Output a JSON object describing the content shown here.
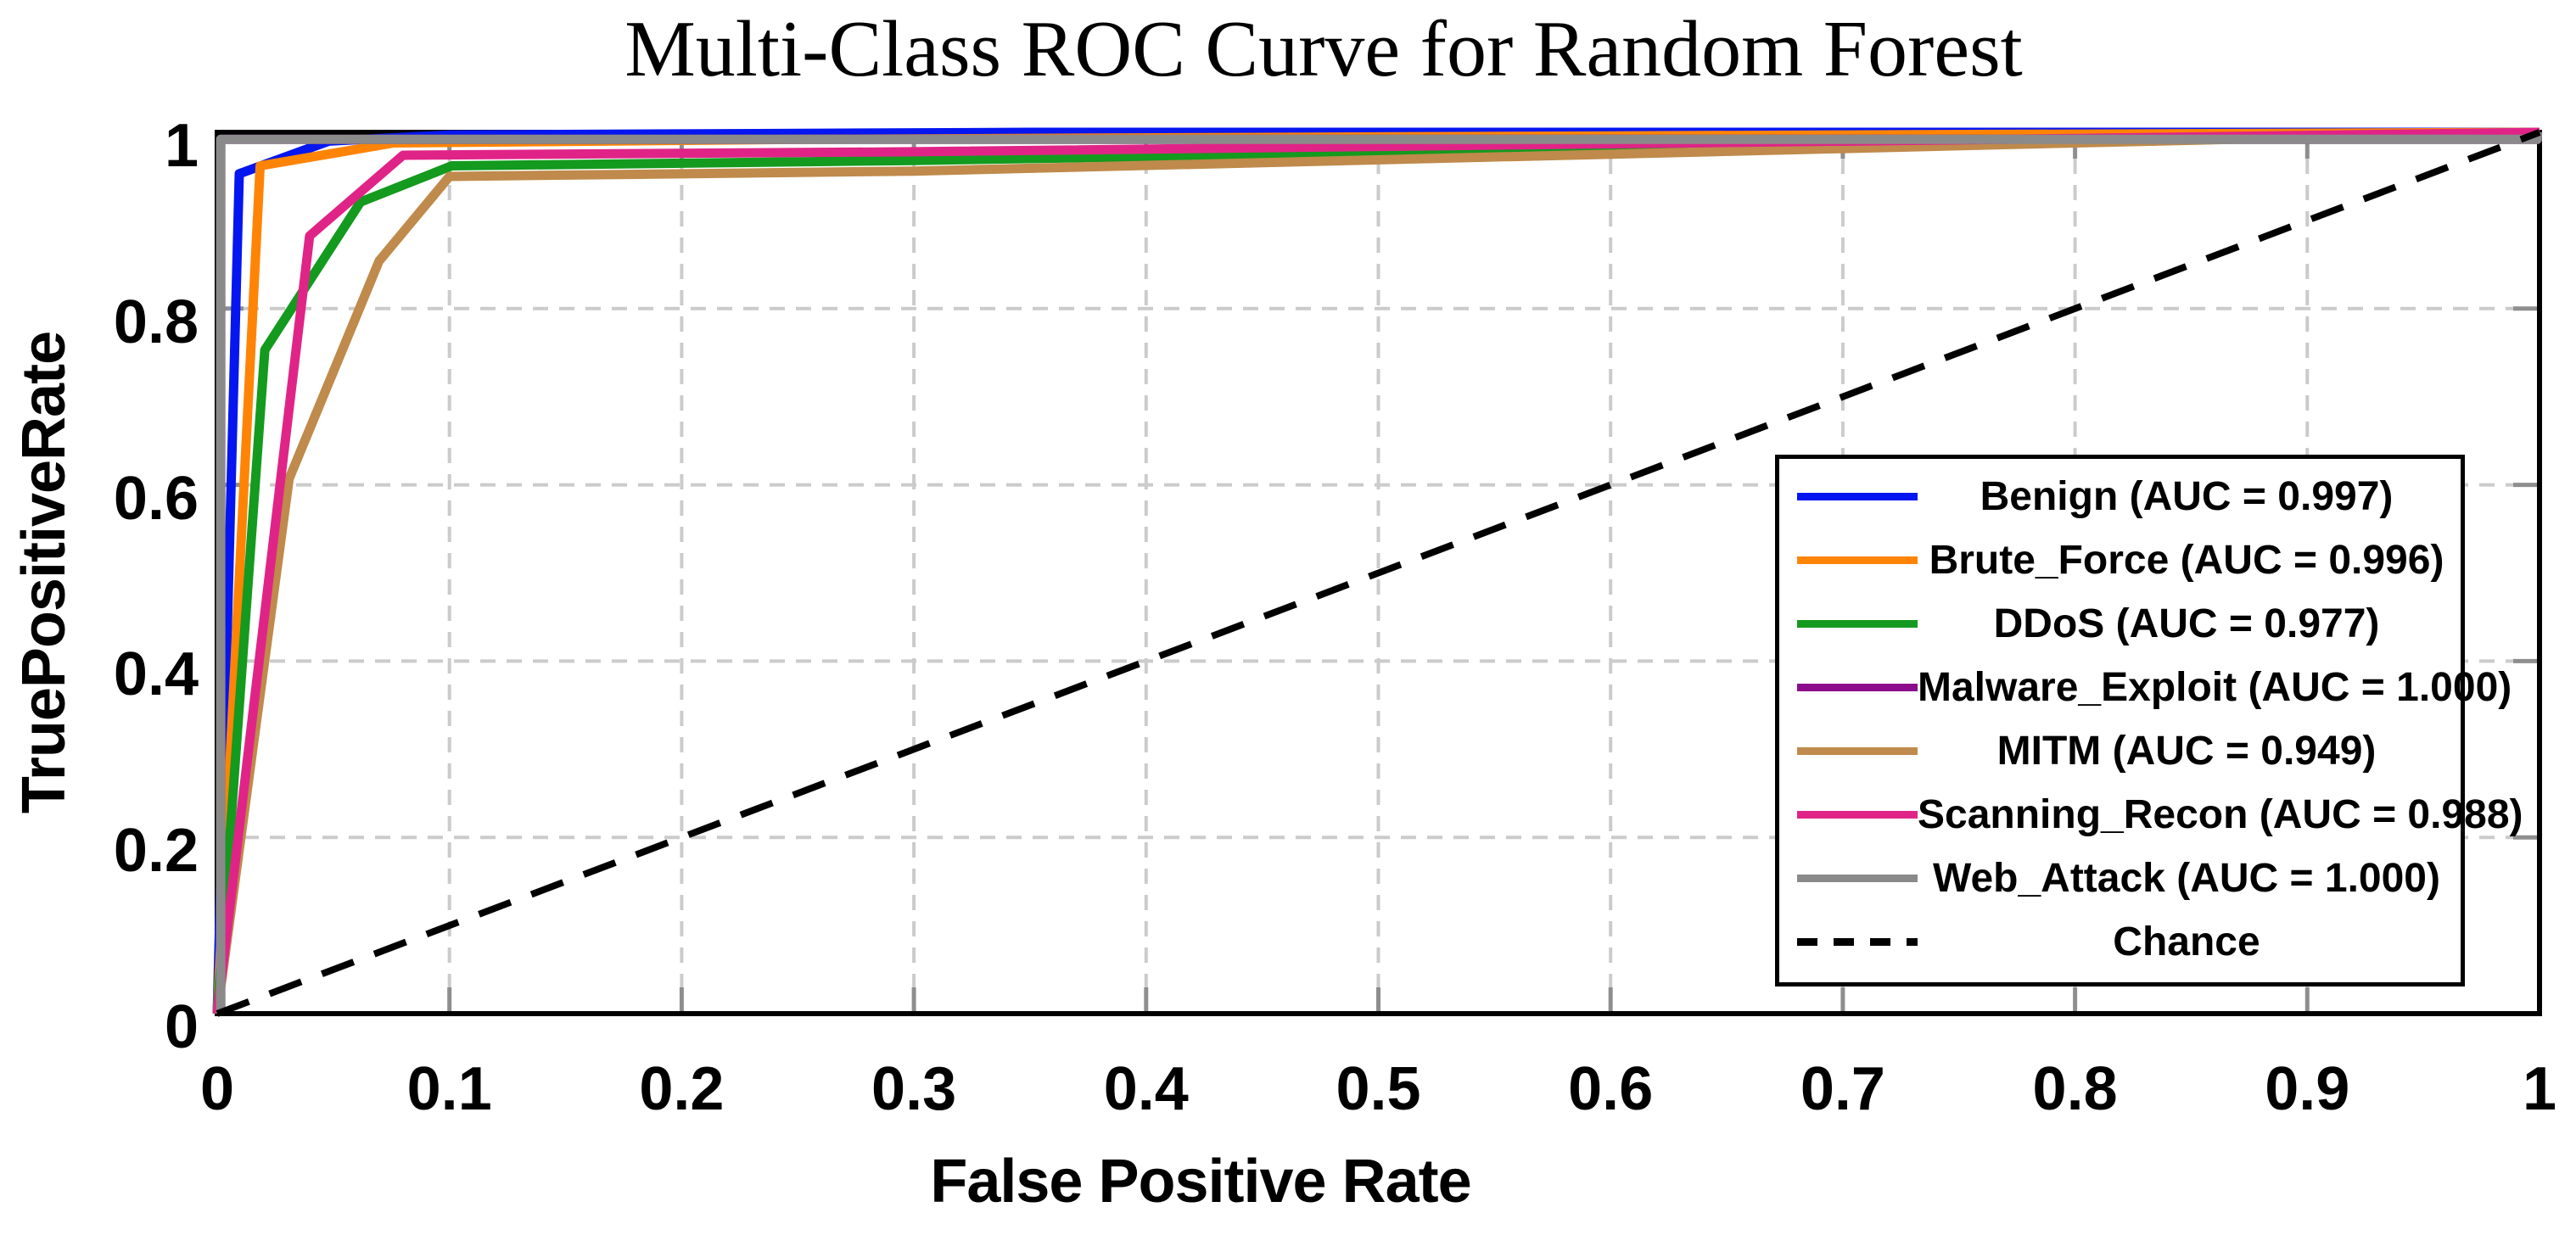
{
  "chart_data": {
    "type": "line",
    "title": "Multi-Class ROC Curve for Random Forest",
    "xlabel": "False Positive Rate",
    "ylabel": "TruePositiveRate",
    "xlim": [
      0,
      1
    ],
    "ylim": [
      0,
      1
    ],
    "grid": {
      "show": true,
      "x_step": 0.1,
      "y_step": 0.2,
      "style": "dashed",
      "color": "#cbcbcb"
    },
    "style": {
      "frame_color": "#000000",
      "tick_color": "#8e8e8e",
      "background": "#ffffff"
    },
    "legend_position": "lower right",
    "x_ticks": [
      {
        "value": 0.0,
        "label": "0"
      },
      {
        "value": 0.1,
        "label": "0.1"
      },
      {
        "value": 0.2,
        "label": "0.2"
      },
      {
        "value": 0.3,
        "label": "0.3"
      },
      {
        "value": 0.4,
        "label": "0.4"
      },
      {
        "value": 0.5,
        "label": "0.5"
      },
      {
        "value": 0.6,
        "label": "0.6"
      },
      {
        "value": 0.7,
        "label": "0.7"
      },
      {
        "value": 0.8,
        "label": "0.8"
      },
      {
        "value": 0.9,
        "label": "0.9"
      },
      {
        "value": 1.0,
        "label": "1"
      }
    ],
    "y_ticks": [
      {
        "value": 0.0,
        "label": "0"
      },
      {
        "value": 0.2,
        "label": "0.2"
      },
      {
        "value": 0.4,
        "label": "0.4"
      },
      {
        "value": 0.6,
        "label": "0.6"
      },
      {
        "value": 0.8,
        "label": "0.8"
      },
      {
        "value": 1.0,
        "label": "1"
      }
    ],
    "series": [
      {
        "name": "Benign",
        "auc": "0.997",
        "legend_label": "Benign (AUC = 0.997)",
        "color": "#0516f0",
        "dash": false,
        "points": [
          [
            0,
            0
          ],
          [
            0.0095,
            0.953
          ],
          [
            0.048,
            0.99
          ],
          [
            0.1,
            0.997
          ],
          [
            0.35,
            1
          ],
          [
            1,
            1
          ]
        ]
      },
      {
        "name": "Brute_Force",
        "auc": "0.996",
        "legend_label": "Brute_Force (AUC = 0.996)",
        "color": "#ff8405",
        "dash": false,
        "points": [
          [
            0,
            0
          ],
          [
            0.0185,
            0.962
          ],
          [
            0.076,
            0.988
          ],
          [
            0.25,
            0.992
          ],
          [
            0.7,
            0.997
          ],
          [
            1,
            1
          ]
        ]
      },
      {
        "name": "DDoS",
        "auc": "0.977",
        "legend_label": "DDoS (AUC = 0.977)",
        "color": "#149a1e",
        "dash": false,
        "points": [
          [
            0,
            0
          ],
          [
            0.0205,
            0.753
          ],
          [
            0.0617,
            0.921
          ],
          [
            0.101,
            0.962
          ],
          [
            0.3,
            0.968
          ],
          [
            0.8,
            0.99
          ],
          [
            1,
            1
          ]
        ]
      },
      {
        "name": "Malware_Exploit",
        "auc": "1.000",
        "legend_label": "Malware_Exploit (AUC = 1.000)",
        "color": "#8c0d8c",
        "dash": false,
        "points": [
          [
            0.0015,
            0
          ],
          [
            0.0015,
            0.992
          ],
          [
            0.999,
            0.992
          ],
          [
            0.999,
            1
          ]
        ]
      },
      {
        "name": "MITM",
        "auc": "0.949",
        "legend_label": "MITM (AUC = 0.949)",
        "color": "#bf8a4b",
        "dash": false,
        "points": [
          [
            0,
            0
          ],
          [
            0.031,
            0.607
          ],
          [
            0.0697,
            0.854
          ],
          [
            0.1,
            0.95
          ],
          [
            0.3,
            0.956
          ],
          [
            0.8,
            0.988
          ],
          [
            1,
            1
          ]
        ]
      },
      {
        "name": "Scanning_Recon",
        "auc": "0.988",
        "legend_label": "Scanning_Recon (AUC = 0.988)",
        "color": "#e02487",
        "dash": false,
        "points": [
          [
            0,
            0
          ],
          [
            0.0398,
            0.8825
          ],
          [
            0.08,
            0.974
          ],
          [
            0.3,
            0.978
          ],
          [
            0.8,
            0.993
          ],
          [
            1,
            1
          ]
        ]
      },
      {
        "name": "Web_Attack",
        "auc": "1.000",
        "legend_label": "Web_Attack (AUC = 1.000)",
        "color": "#8a8a8a",
        "dash": false,
        "points": [
          [
            0.0015,
            0
          ],
          [
            0.0015,
            0.992
          ],
          [
            0.999,
            0.992
          ],
          [
            0.999,
            1
          ]
        ]
      },
      {
        "name": "Chance",
        "auc": null,
        "legend_label": "Chance",
        "color": "#000000",
        "dash": true,
        "points": [
          [
            0,
            0
          ],
          [
            1,
            1
          ]
        ]
      }
    ]
  }
}
